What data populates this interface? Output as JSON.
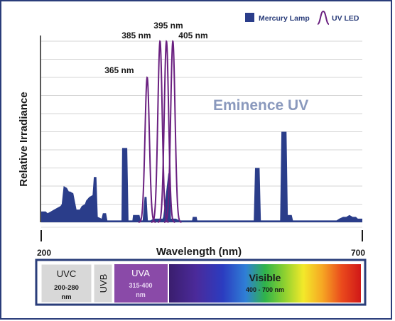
{
  "colors": {
    "frame": "#2a3d7a",
    "mercury": "#2a3d8a",
    "uvled": "#6a2080",
    "grid": "#c9c9c9",
    "watermark": "#8a99bd",
    "uvc_box": "#d8d8d8",
    "uvb_box": "#d8d8d8",
    "uva_box": "#8a4aa8",
    "band_border": "#2a3d7a"
  },
  "chart_data": {
    "type": "area",
    "xlabel": "Wavelength (nm)",
    "ylabel": "Relative Irradiance",
    "x_tick_labels": [
      "200",
      "700"
    ],
    "xlim": [
      200,
      700
    ],
    "ylim": [
      0,
      100
    ],
    "grid": "horizontal",
    "legend_position": "top-right",
    "watermark": "Eminence UV",
    "series": [
      {
        "name": "Mercury Lamp",
        "type": "area",
        "points": [
          [
            200,
            6
          ],
          [
            207,
            6
          ],
          [
            210,
            5
          ],
          [
            215,
            6
          ],
          [
            220,
            7
          ],
          [
            225,
            8
          ],
          [
            230,
            9
          ],
          [
            232,
            10
          ],
          [
            235,
            20
          ],
          [
            240,
            19
          ],
          [
            243,
            17
          ],
          [
            245,
            17
          ],
          [
            250,
            16
          ],
          [
            255,
            7
          ],
          [
            260,
            7
          ],
          [
            263,
            9
          ],
          [
            268,
            10
          ],
          [
            270,
            12
          ],
          [
            275,
            14
          ],
          [
            280,
            15
          ],
          [
            282,
            25
          ],
          [
            286,
            25
          ],
          [
            288,
            3
          ],
          [
            294,
            2
          ],
          [
            296,
            5
          ],
          [
            301,
            5
          ],
          [
            303,
            1
          ],
          [
            305,
            1
          ],
          [
            313,
            1
          ],
          [
            315,
            1
          ],
          [
            321,
            1
          ],
          [
            325,
            1
          ],
          [
            326,
            41
          ],
          [
            334,
            41
          ],
          [
            336,
            1
          ],
          [
            342,
            1
          ],
          [
            343,
            4
          ],
          [
            353,
            4
          ],
          [
            355,
            1
          ],
          [
            358,
            1
          ],
          [
            361,
            14
          ],
          [
            364,
            14
          ],
          [
            366,
            1
          ],
          [
            370,
            1
          ],
          [
            375,
            2
          ],
          [
            380,
            2
          ],
          [
            389,
            2
          ],
          [
            390,
            3
          ],
          [
            398,
            27
          ],
          [
            400,
            27
          ],
          [
            402,
            2
          ],
          [
            410,
            2
          ],
          [
            415,
            1
          ],
          [
            430,
            1
          ],
          [
            435,
            1
          ],
          [
            436,
            3
          ],
          [
            442,
            3
          ],
          [
            443,
            1
          ],
          [
            475,
            1
          ],
          [
            480,
            1
          ],
          [
            490,
            1
          ],
          [
            500,
            1
          ],
          [
            531,
            1
          ],
          [
            533,
            30
          ],
          [
            540,
            30
          ],
          [
            542,
            1
          ],
          [
            560,
            1
          ],
          [
            572,
            1
          ],
          [
            574,
            50
          ],
          [
            582,
            50
          ],
          [
            584,
            4
          ],
          [
            590,
            4
          ],
          [
            592,
            1
          ],
          [
            610,
            1
          ],
          [
            640,
            1
          ],
          [
            660,
            1
          ],
          [
            664,
            2
          ],
          [
            670,
            3
          ],
          [
            675,
            3
          ],
          [
            680,
            4
          ],
          [
            685,
            3
          ],
          [
            690,
            3
          ],
          [
            693,
            2
          ],
          [
            700,
            2
          ]
        ]
      },
      {
        "name": "UV LED",
        "type": "line",
        "peaks": [
          {
            "center": 365,
            "height": 80,
            "fwhm": 8,
            "label": "365 nm"
          },
          {
            "center": 385,
            "height": 100,
            "fwhm": 8,
            "label": "385 nm"
          },
          {
            "center": 395,
            "height": 100,
            "fwhm": 8,
            "label": "395 nm"
          },
          {
            "center": 405,
            "height": 100,
            "fwhm": 8,
            "label": "405 nm"
          }
        ]
      }
    ]
  },
  "spectrum_bands": {
    "uvc": {
      "name": "UVC",
      "range": "200-280",
      "unit": "nm"
    },
    "uvb": {
      "name": "UVB"
    },
    "uva": {
      "name": "UVA",
      "range": "315-400",
      "unit": "nm"
    },
    "visible": {
      "name": "Visible",
      "range": "400 - 700 nm"
    }
  }
}
